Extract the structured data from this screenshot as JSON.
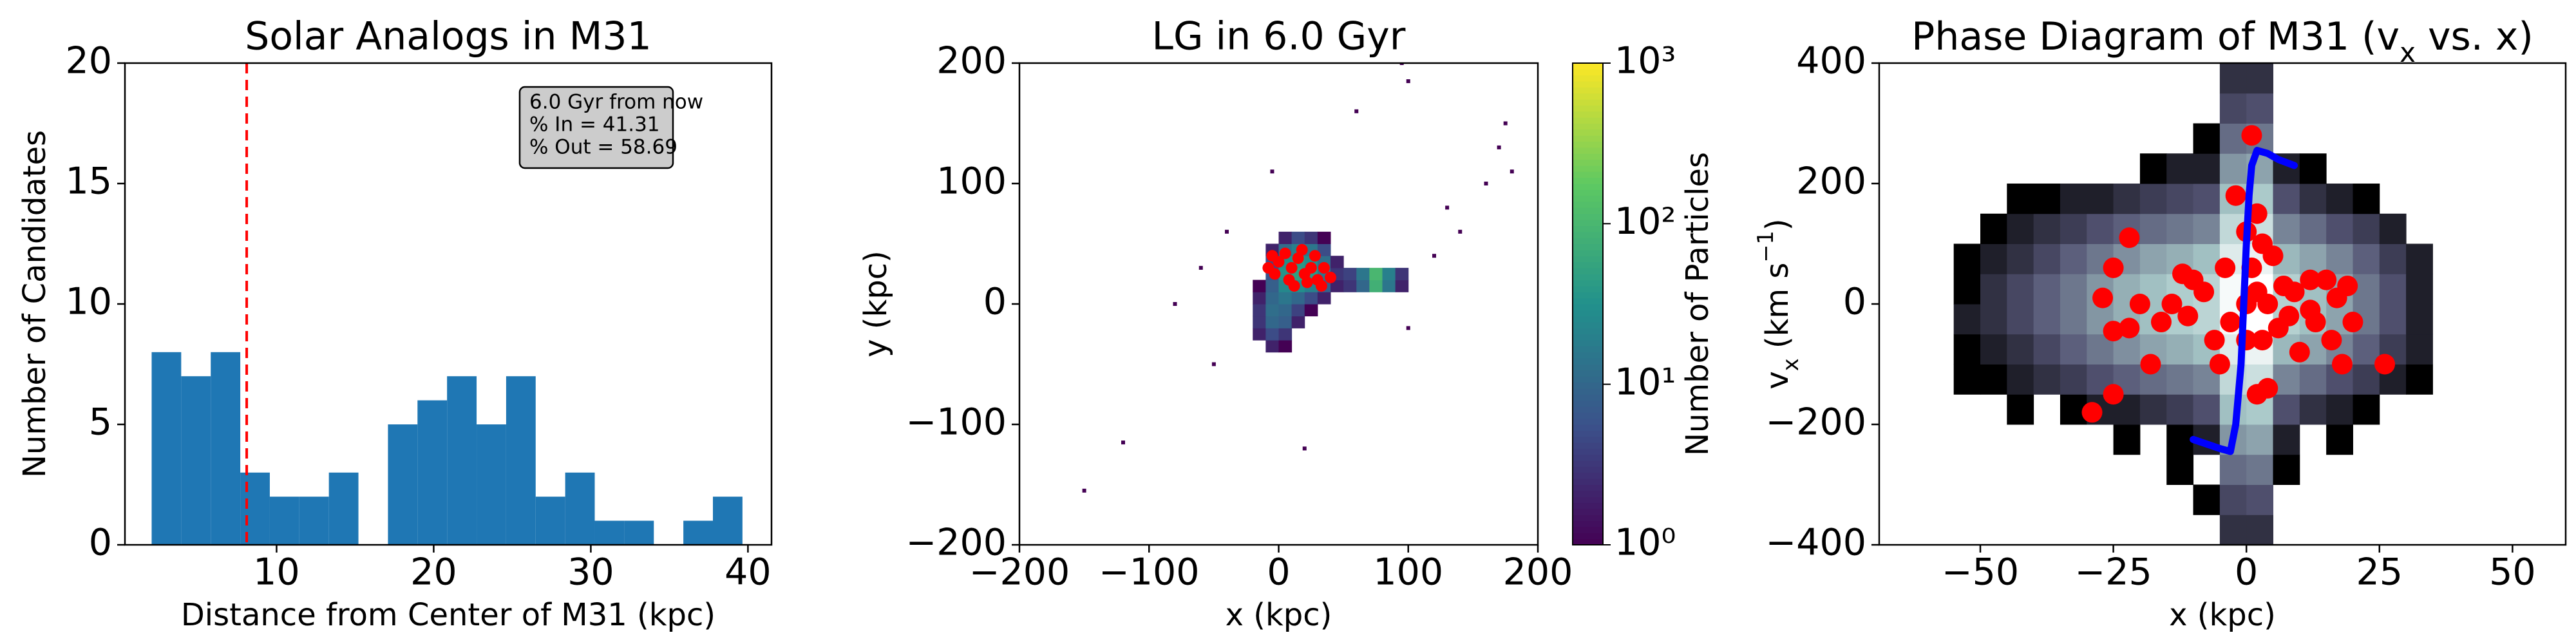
{
  "chart_data": [
    {
      "type": "histogram",
      "title": "Solar Analogs in M31",
      "xlabel": "Distance from Center of M31 (kpc)",
      "ylabel": "Number of Candidates",
      "bins": [
        2.05,
        3.93,
        5.81,
        7.69,
        9.57,
        11.45,
        13.33,
        15.21,
        17.09,
        18.97,
        20.85,
        22.73,
        24.61,
        26.49,
        28.37,
        30.25,
        32.13,
        34.01,
        35.89,
        37.77,
        39.65
      ],
      "values": [
        8,
        7,
        8,
        3,
        2,
        2,
        3,
        0,
        5,
        6,
        7,
        5,
        7,
        2,
        3,
        1,
        1,
        0,
        1,
        2
      ],
      "color": "#1f77b4",
      "xlim": [
        0.35,
        41.5
      ],
      "ylim": [
        0,
        20
      ],
      "xticks": [
        10,
        20,
        30,
        40
      ],
      "yticks": [
        0,
        5,
        10,
        15,
        20
      ],
      "vline": {
        "x": 8.1,
        "color": "#ff0000"
      },
      "annotation": [
        "6.0 Gyr from now",
        "% In = 41.31",
        "% Out = 58.69"
      ]
    },
    {
      "type": "hist2d",
      "title": "LG in 6.0 Gyr",
      "xlabel": "x (kpc)",
      "ylabel": "y (kpc)",
      "xlim": [
        -200,
        200
      ],
      "ylim": [
        -200,
        200
      ],
      "xticks": [
        {
          "value": -200,
          "label": "−200"
        },
        {
          "value": -100,
          "label": "−100"
        },
        0,
        100,
        200
      ],
      "yticks": [
        {
          "value": -200,
          "label": "−200"
        },
        {
          "value": -100,
          "label": "−100"
        },
        0,
        100,
        200
      ],
      "colormap": "viridis",
      "clim": [
        1,
        1000
      ],
      "log_color": true,
      "x_edges": [
        -20,
        -10,
        0,
        10,
        20,
        30,
        40,
        50,
        60,
        70,
        80,
        90,
        100
      ],
      "y_edges": [
        -40,
        -30,
        -20,
        -10,
        0,
        10,
        20,
        30,
        40,
        50,
        60
      ],
      "counts": [
        [
          null,
          2,
          1,
          null,
          null,
          null,
          null,
          null,
          null,
          null,
          null,
          null
        ],
        [
          2,
          5,
          3,
          null,
          null,
          null,
          null,
          null,
          null,
          null,
          null,
          null
        ],
        [
          3,
          10,
          8,
          2,
          null,
          null,
          null,
          null,
          null,
          null,
          null,
          null
        ],
        [
          3,
          12,
          10,
          4,
          1,
          null,
          null,
          null,
          null,
          null,
          null,
          null
        ],
        [
          2,
          10,
          15,
          10,
          5,
          2,
          null,
          null,
          null,
          null,
          null,
          null
        ],
        [
          1,
          8,
          25,
          30,
          20,
          8,
          2,
          3,
          10,
          80,
          15,
          2
        ],
        [
          null,
          6,
          35,
          50,
          40,
          15,
          3,
          4,
          15,
          100,
          20,
          3
        ],
        [
          null,
          5,
          30,
          40,
          30,
          12,
          2,
          null,
          null,
          null,
          null,
          null
        ],
        [
          null,
          2,
          12,
          20,
          15,
          5,
          null,
          null,
          null,
          null,
          null,
          null
        ],
        [
          null,
          null,
          2,
          5,
          3,
          1,
          null,
          null,
          null,
          null,
          null,
          null
        ]
      ],
      "sparse_points": {
        "x": [
          95,
          100,
          -5,
          60,
          140,
          160,
          170,
          180,
          175,
          120,
          -40,
          -60,
          -80,
          -120,
          -150,
          100,
          20,
          -50,
          130
        ],
        "y": [
          200,
          185,
          110,
          160,
          60,
          100,
          130,
          110,
          150,
          40,
          60,
          30,
          0,
          -115,
          -155,
          -20,
          -120,
          -50,
          80
        ]
      },
      "colorbar": {
        "label": "Number of Particles",
        "ticks": [
          {
            "value": 1,
            "label": "10⁰"
          },
          {
            "value": 10,
            "label": "10¹"
          },
          {
            "value": 100,
            "label": "10²"
          },
          {
            "value": 1000,
            "label": "10³"
          }
        ]
      },
      "scatter": {
        "color": "#ff0000",
        "x": [
          -5,
          0,
          5,
          10,
          15,
          20,
          25,
          30,
          8,
          18,
          28,
          35,
          -3,
          12,
          22,
          33,
          -8,
          40
        ],
        "y": [
          40,
          35,
          42,
          30,
          38,
          25,
          30,
          20,
          20,
          45,
          40,
          30,
          25,
          15,
          18,
          15,
          30,
          22
        ]
      }
    },
    {
      "type": "hist2d",
      "title": [
        {
          "text": "Phase Diagram of M31 (v"
        },
        {
          "text": "x",
          "shift": "sub"
        },
        {
          "text": " vs. x)"
        }
      ],
      "xlabel": "x (kpc)",
      "ylabel": [
        {
          "text": "v"
        },
        {
          "text": "x",
          "shift": "sub"
        },
        {
          "text": " (km s"
        },
        {
          "text": "−1",
          "shift": "super"
        },
        {
          "text": ")"
        }
      ],
      "xlim": [
        -69,
        60
      ],
      "ylim": [
        -400,
        400
      ],
      "xticks": [
        {
          "value": -50,
          "label": "−50"
        },
        {
          "value": -25,
          "label": "−25"
        },
        0,
        25,
        50
      ],
      "yticks": [
        {
          "value": -400,
          "label": "−400"
        },
        {
          "value": -200,
          "label": "−200"
        },
        0,
        200,
        400
      ],
      "colormap": "bone",
      "clim": [
        1,
        300
      ],
      "log_color": true,
      "x_edges": [
        -55,
        -50,
        -45,
        -40,
        -35,
        -30,
        -25,
        -20,
        -15,
        -10,
        -5,
        0,
        5,
        10,
        15,
        20,
        25,
        30,
        35
      ],
      "y_edges": [
        -400,
        -350,
        -300,
        -250,
        -200,
        -150,
        -100,
        -50,
        0,
        50,
        100,
        150,
        200,
        250,
        300,
        350,
        400
      ],
      "counts": [
        [
          null,
          null,
          null,
          null,
          null,
          null,
          null,
          null,
          null,
          null,
          3,
          3,
          null,
          null,
          null,
          null,
          null,
          null
        ],
        [
          null,
          null,
          null,
          null,
          null,
          null,
          null,
          null,
          null,
          1,
          5,
          6,
          null,
          null,
          null,
          null,
          null,
          null
        ],
        [
          null,
          null,
          null,
          null,
          null,
          null,
          null,
          null,
          1,
          null,
          10,
          12,
          1,
          null,
          null,
          null,
          null,
          null
        ],
        [
          null,
          null,
          null,
          null,
          null,
          null,
          1,
          null,
          1,
          2,
          20,
          25,
          2,
          null,
          1,
          null,
          null,
          null
        ],
        [
          null,
          null,
          1,
          null,
          1,
          2,
          2,
          3,
          4,
          6,
          40,
          50,
          6,
          3,
          2,
          1,
          null,
          null
        ],
        [
          1,
          1,
          2,
          3,
          4,
          6,
          8,
          10,
          12,
          15,
          80,
          100,
          15,
          10,
          6,
          4,
          2,
          1
        ],
        [
          1,
          2,
          3,
          5,
          8,
          12,
          18,
          25,
          30,
          40,
          150,
          200,
          35,
          25,
          15,
          8,
          4,
          2
        ],
        [
          2,
          3,
          5,
          8,
          12,
          20,
          30,
          40,
          55,
          70,
          250,
          300,
          60,
          40,
          25,
          12,
          6,
          2
        ],
        [
          1,
          3,
          5,
          8,
          12,
          20,
          30,
          40,
          55,
          70,
          250,
          300,
          60,
          40,
          25,
          12,
          6,
          2
        ],
        [
          1,
          2,
          3,
          5,
          8,
          12,
          18,
          25,
          30,
          40,
          150,
          200,
          35,
          25,
          15,
          8,
          4,
          2
        ],
        [
          null,
          1,
          2,
          3,
          4,
          6,
          8,
          10,
          12,
          15,
          80,
          100,
          15,
          10,
          6,
          4,
          2,
          null
        ],
        [
          null,
          null,
          1,
          1,
          2,
          2,
          3,
          4,
          5,
          6,
          40,
          50,
          6,
          3,
          2,
          1,
          null,
          null
        ],
        [
          null,
          null,
          null,
          null,
          null,
          null,
          null,
          1,
          2,
          2,
          20,
          25,
          2,
          1,
          null,
          null,
          null,
          null
        ],
        [
          null,
          null,
          null,
          null,
          null,
          null,
          null,
          null,
          null,
          1,
          10,
          12,
          null,
          null,
          null,
          null,
          null,
          null
        ],
        [
          null,
          null,
          null,
          null,
          null,
          null,
          null,
          null,
          null,
          null,
          5,
          6,
          null,
          null,
          null,
          null,
          null,
          null
        ],
        [
          null,
          null,
          null,
          null,
          null,
          null,
          null,
          null,
          null,
          null,
          3,
          3,
          null,
          null,
          null,
          null,
          null,
          null
        ]
      ],
      "scatter": {
        "color": "#ff0000",
        "x": [
          -29,
          -25,
          -27,
          -25,
          -22,
          -22,
          -25,
          -20,
          -18,
          -12,
          -10,
          -11,
          -8,
          -6,
          -5,
          -3,
          -2,
          0,
          0,
          1,
          1,
          2,
          2,
          3,
          4,
          2,
          0,
          5,
          6,
          7,
          8,
          9,
          10,
          12,
          12,
          13,
          15,
          16,
          17,
          18,
          19,
          20,
          26,
          -14,
          -16,
          4,
          3,
          -4
        ],
        "y": [
          -180,
          -150,
          10,
          60,
          110,
          -40,
          -45,
          0,
          -100,
          50,
          40,
          -20,
          20,
          -60,
          -100,
          -30,
          180,
          120,
          -60,
          60,
          280,
          150,
          -150,
          -60,
          -140,
          20,
          0,
          80,
          -40,
          30,
          -20,
          20,
          -80,
          -10,
          40,
          -30,
          40,
          -60,
          10,
          -100,
          30,
          -30,
          -100,
          0,
          -30,
          0,
          100,
          60
        ]
      },
      "line": {
        "color": "#0000ff",
        "x": [
          -10,
          -5,
          -3,
          -2,
          -1,
          -0.5,
          0,
          0.5,
          1,
          2,
          4,
          6,
          9
        ],
        "y": [
          -225,
          -240,
          -245,
          -200,
          -100,
          0,
          100,
          180,
          230,
          255,
          250,
          240,
          230
        ]
      }
    }
  ]
}
